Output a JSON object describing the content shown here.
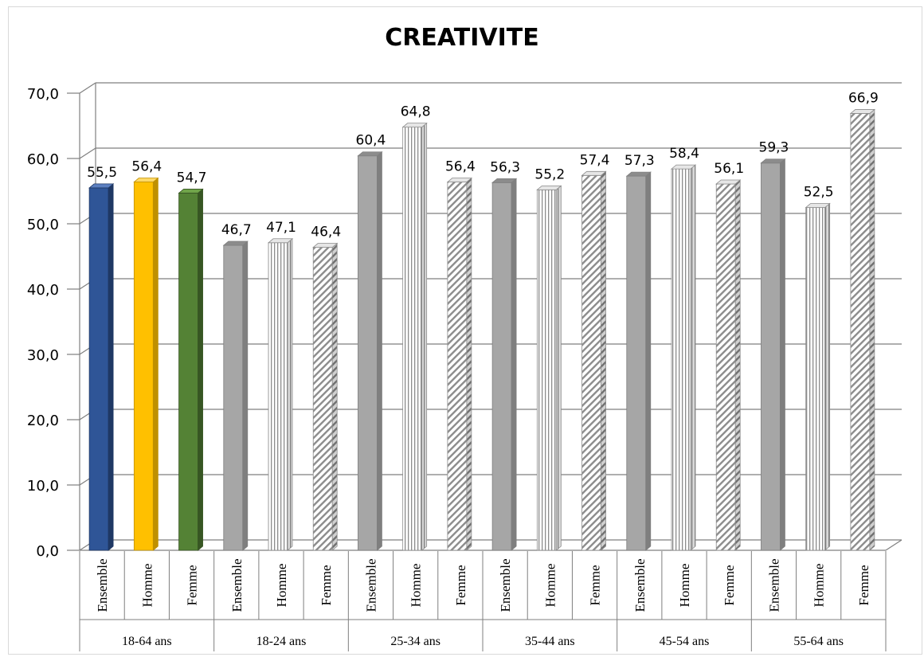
{
  "chart_data": {
    "type": "bar",
    "title": "CREATIVITE",
    "ylim": [
      0,
      70
    ],
    "yticks": [
      "0,0",
      "10,0",
      "20,0",
      "30,0",
      "40,0",
      "50,0",
      "60,0",
      "70,0"
    ],
    "grid": true,
    "groups": [
      {
        "label": "18-64 ans",
        "bars": [
          {
            "label": "Ensemble",
            "value": 55.5,
            "value_label": "55,5",
            "style": "blue"
          },
          {
            "label": "Homme",
            "value": 56.4,
            "value_label": "56,4",
            "style": "gold"
          },
          {
            "label": "Femme",
            "value": 54.7,
            "value_label": "54,7",
            "style": "green"
          }
        ]
      },
      {
        "label": "18-24 ans",
        "bars": [
          {
            "label": "Ensemble",
            "value": 46.7,
            "value_label": "46,7",
            "style": "gray"
          },
          {
            "label": "Homme",
            "value": 47.1,
            "value_label": "47,1",
            "style": "vstripe"
          },
          {
            "label": "Femme",
            "value": 46.4,
            "value_label": "46,4",
            "style": "diag"
          }
        ]
      },
      {
        "label": "25-34 ans",
        "bars": [
          {
            "label": "Ensemble",
            "value": 60.4,
            "value_label": "60,4",
            "style": "gray"
          },
          {
            "label": "Homme",
            "value": 64.8,
            "value_label": "64,8",
            "style": "vstripe"
          },
          {
            "label": "Femme",
            "value": 56.4,
            "value_label": "56,4",
            "style": "diag"
          }
        ]
      },
      {
        "label": "35-44 ans",
        "bars": [
          {
            "label": "Ensemble",
            "value": 56.3,
            "value_label": "56,3",
            "style": "gray"
          },
          {
            "label": "Homme",
            "value": 55.2,
            "value_label": "55,2",
            "style": "vstripe"
          },
          {
            "label": "Femme",
            "value": 57.4,
            "value_label": "57,4",
            "style": "diag"
          }
        ]
      },
      {
        "label": "45-54 ans",
        "bars": [
          {
            "label": "Ensemble",
            "value": 57.3,
            "value_label": "57,3",
            "style": "gray"
          },
          {
            "label": "Homme",
            "value": 58.4,
            "value_label": "58,4",
            "style": "vstripe"
          },
          {
            "label": "Femme",
            "value": 56.1,
            "value_label": "56,1",
            "style": "diag"
          }
        ]
      },
      {
        "label": "55-64 ans",
        "bars": [
          {
            "label": "Ensemble",
            "value": 59.3,
            "value_label": "59,3",
            "style": "gray"
          },
          {
            "label": "Homme",
            "value": 52.5,
            "value_label": "52,5",
            "style": "vstripe"
          },
          {
            "label": "Femme",
            "value": 66.9,
            "value_label": "66,9",
            "style": "diag"
          }
        ]
      }
    ],
    "colors": {
      "blue": "#2f5597",
      "gold": "#ffc000",
      "green": "#548235",
      "gray": "#a6a6a6"
    }
  }
}
